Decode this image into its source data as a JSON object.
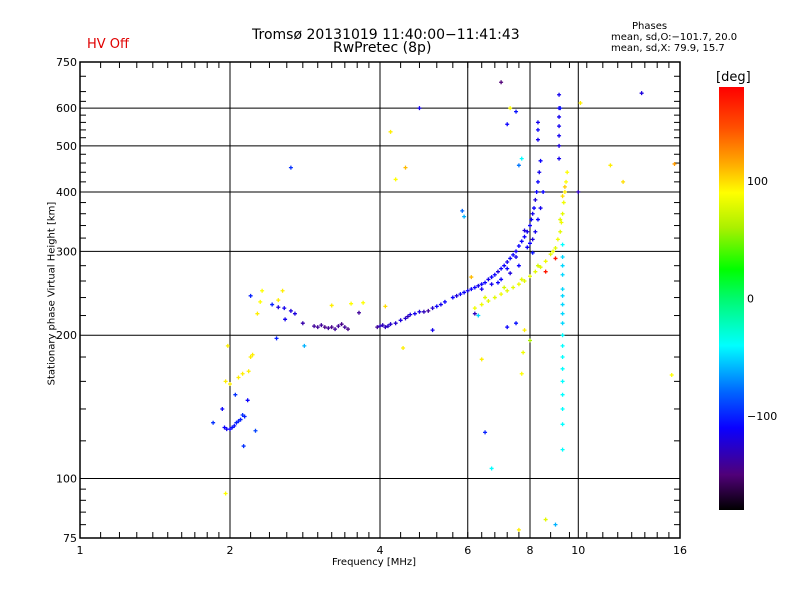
{
  "header": {
    "title_line1": "Tromsø 20131019 11:40:00−11:41:43",
    "title_line2": "RwPretec (8p)",
    "status": "HV Off",
    "phases_title": "Phases",
    "phases_o": "mean, sd,O:−101.7, 20.0",
    "phases_x": "mean, sd,X:  79.9, 15.7"
  },
  "colors": {
    "status": "#e00000",
    "grid": "#000000"
  },
  "chart_data": {
    "type": "scatter",
    "title": "Tromsø 20131019 11:40:00−11:41:43 RwPretec (8p)",
    "xlabel": "Frequency [MHz]",
    "ylabel": "Stationary phase Virtual Height [km]",
    "xscale": "log",
    "yscale": "log",
    "xlim": [
      1,
      16
    ],
    "ylim": [
      75,
      750
    ],
    "xticks": [
      1,
      2,
      4,
      6,
      8,
      10,
      16
    ],
    "xtick_labels": [
      "1",
      "2",
      "4",
      "6",
      "8",
      "10",
      "16"
    ],
    "yticks": [
      75,
      100,
      200,
      300,
      400,
      500,
      600,
      750
    ],
    "ytick_labels": [
      "75",
      "100",
      "200",
      "300",
      "400",
      "500",
      "600",
      "750"
    ],
    "grid": true,
    "colorbar": {
      "label": "[deg]",
      "range": [
        -180,
        180
      ],
      "ticks": [
        100,
        0,
        -100
      ],
      "tick_labels": [
        "100",
        "0",
        "−100"
      ],
      "colormap": "rainbow (black→purple→blue→cyan→green→yellow→orange→red)"
    },
    "columns": [
      "freq_MHz",
      "height_km",
      "phase_deg"
    ],
    "points": [
      [
        1.85,
        131,
        -95
      ],
      [
        1.93,
        140,
        -110
      ],
      [
        1.95,
        128,
        -110
      ],
      [
        1.97,
        127,
        -112
      ],
      [
        2.0,
        127,
        -110
      ],
      [
        2.02,
        128,
        -105
      ],
      [
        2.04,
        129,
        -105
      ],
      [
        2.06,
        131,
        -100
      ],
      [
        2.08,
        132,
        -100
      ],
      [
        2.1,
        133,
        -100
      ],
      [
        2.12,
        136,
        -95
      ],
      [
        2.14,
        135,
        -100
      ],
      [
        2.17,
        146,
        -110
      ],
      [
        2.05,
        150,
        -95
      ],
      [
        2.25,
        126,
        -90
      ],
      [
        2.13,
        117,
        -95
      ],
      [
        1.96,
        93,
        90
      ],
      [
        1.96,
        160,
        95
      ],
      [
        2.0,
        158,
        95
      ],
      [
        2.08,
        163,
        95
      ],
      [
        2.12,
        166,
        95
      ],
      [
        2.2,
        180,
        95
      ],
      [
        2.22,
        182,
        95
      ],
      [
        2.18,
        168,
        95
      ],
      [
        1.98,
        190,
        95
      ],
      [
        2.48,
        197,
        -100
      ],
      [
        2.5,
        229,
        -120
      ],
      [
        2.43,
        232,
        -100
      ],
      [
        2.2,
        242,
        -100
      ],
      [
        2.27,
        222,
        95
      ],
      [
        2.3,
        235,
        90
      ],
      [
        2.32,
        248,
        90
      ],
      [
        2.5,
        237,
        95
      ],
      [
        2.55,
        248,
        95
      ],
      [
        2.57,
        228,
        -115
      ],
      [
        2.65,
        225,
        -120
      ],
      [
        2.7,
        222,
        -120
      ],
      [
        2.58,
        216,
        -115
      ],
      [
        2.65,
        450,
        -95
      ],
      [
        2.82,
        190,
        -60
      ],
      [
        2.8,
        212,
        -135
      ],
      [
        2.95,
        209,
        -140
      ],
      [
        3.0,
        208,
        -140
      ],
      [
        3.05,
        210,
        -140
      ],
      [
        3.1,
        208,
        -145
      ],
      [
        3.15,
        207,
        -140
      ],
      [
        3.2,
        208,
        -145
      ],
      [
        3.25,
        206,
        -140
      ],
      [
        3.3,
        209,
        -140
      ],
      [
        3.35,
        211,
        -145
      ],
      [
        3.4,
        208,
        -140
      ],
      [
        3.45,
        206,
        -145
      ],
      [
        3.2,
        231,
        95
      ],
      [
        3.5,
        233,
        90
      ],
      [
        3.7,
        234,
        90
      ],
      [
        3.63,
        223,
        -140
      ],
      [
        3.95,
        208,
        -140
      ],
      [
        4.0,
        209,
        -130
      ],
      [
        4.05,
        210,
        -130
      ],
      [
        4.1,
        208,
        -130
      ],
      [
        4.15,
        209,
        -125
      ],
      [
        4.2,
        211,
        -125
      ],
      [
        4.3,
        212,
        -125
      ],
      [
        4.4,
        215,
        -120
      ],
      [
        4.5,
        217,
        -125
      ],
      [
        4.55,
        219,
        -130
      ],
      [
        4.6,
        221,
        -120
      ],
      [
        4.7,
        222,
        -115
      ],
      [
        4.8,
        224,
        -120
      ],
      [
        4.9,
        224,
        -130
      ],
      [
        5.0,
        225,
        -140
      ],
      [
        5.1,
        228,
        -125
      ],
      [
        5.2,
        230,
        -110
      ],
      [
        5.3,
        232,
        -115
      ],
      [
        5.4,
        235,
        -110
      ],
      [
        5.6,
        240,
        -110
      ],
      [
        5.7,
        242,
        -120
      ],
      [
        5.8,
        244,
        -110
      ],
      [
        5.9,
        246,
        -110
      ],
      [
        6.0,
        248,
        -115
      ],
      [
        6.1,
        250,
        -110
      ],
      [
        6.2,
        252,
        -110
      ],
      [
        6.3,
        254,
        -115
      ],
      [
        6.4,
        256,
        -110
      ],
      [
        6.5,
        258,
        -110
      ],
      [
        6.6,
        262,
        -115
      ],
      [
        6.7,
        265,
        -110
      ],
      [
        6.8,
        268,
        -110
      ],
      [
        6.9,
        272,
        -120
      ],
      [
        7.0,
        276,
        -110
      ],
      [
        7.1,
        280,
        -110
      ],
      [
        7.2,
        285,
        -115
      ],
      [
        7.3,
        290,
        -110
      ],
      [
        7.4,
        295,
        -110
      ],
      [
        7.5,
        300,
        -115
      ],
      [
        7.6,
        308,
        -110
      ],
      [
        7.7,
        315,
        -110
      ],
      [
        7.8,
        322,
        -110
      ],
      [
        7.9,
        330,
        -115
      ],
      [
        8.0,
        340,
        -110
      ],
      [
        8.05,
        350,
        -110
      ],
      [
        8.1,
        360,
        -115
      ],
      [
        8.15,
        370,
        -110
      ],
      [
        8.2,
        385,
        -120
      ],
      [
        8.25,
        400,
        -110
      ],
      [
        8.3,
        420,
        -110
      ],
      [
        8.35,
        440,
        -115
      ],
      [
        8.4,
        465,
        -110
      ],
      [
        8.0,
        312,
        -110
      ],
      [
        7.8,
        332,
        -120
      ],
      [
        8.1,
        298,
        -105
      ],
      [
        7.6,
        280,
        -110
      ],
      [
        7.3,
        270,
        -120
      ],
      [
        7.0,
        262,
        -110
      ],
      [
        6.7,
        256,
        -115
      ],
      [
        6.4,
        250,
        -115
      ],
      [
        6.9,
        258,
        -110
      ],
      [
        7.2,
        276,
        -110
      ],
      [
        7.5,
        292,
        -115
      ],
      [
        8.2,
        330,
        -115
      ],
      [
        8.3,
        350,
        -110
      ],
      [
        8.4,
        370,
        -115
      ],
      [
        8.5,
        400,
        -110
      ],
      [
        8.1,
        318,
        -120
      ],
      [
        7.9,
        306,
        -110
      ],
      [
        6.2,
        228,
        85
      ],
      [
        6.4,
        232,
        85
      ],
      [
        6.6,
        236,
        80
      ],
      [
        6.8,
        240,
        80
      ],
      [
        7.0,
        244,
        85
      ],
      [
        7.2,
        248,
        80
      ],
      [
        7.4,
        252,
        80
      ],
      [
        7.6,
        256,
        85
      ],
      [
        7.8,
        260,
        80
      ],
      [
        8.0,
        266,
        80
      ],
      [
        8.2,
        272,
        80
      ],
      [
        8.4,
        278,
        80
      ],
      [
        8.6,
        286,
        85
      ],
      [
        8.8,
        296,
        80
      ],
      [
        9.0,
        305,
        80
      ],
      [
        9.1,
        318,
        85
      ],
      [
        9.2,
        330,
        80
      ],
      [
        9.25,
        345,
        85
      ],
      [
        9.3,
        360,
        80
      ],
      [
        9.35,
        380,
        85
      ],
      [
        9.4,
        400,
        95
      ],
      [
        9.45,
        420,
        90
      ],
      [
        6.5,
        240,
        80
      ],
      [
        7.1,
        252,
        75
      ],
      [
        7.7,
        262,
        80
      ],
      [
        8.3,
        280,
        75
      ],
      [
        8.9,
        300,
        85
      ],
      [
        9.2,
        350,
        80
      ],
      [
        9.3,
        392,
        100
      ],
      [
        9.4,
        410,
        105
      ],
      [
        9.5,
        440,
        90
      ],
      [
        8.6,
        272,
        170
      ],
      [
        9.0,
        290,
        170
      ],
      [
        4.1,
        230,
        100
      ],
      [
        4.2,
        535,
        95
      ],
      [
        4.3,
        425,
        90
      ],
      [
        4.5,
        450,
        110
      ],
      [
        4.45,
        188,
        95
      ],
      [
        4.8,
        600,
        -115
      ],
      [
        5.1,
        205,
        -115
      ],
      [
        5.85,
        365,
        -80
      ],
      [
        5.9,
        355,
        -60
      ],
      [
        6.1,
        265,
        110
      ],
      [
        6.2,
        222,
        -130
      ],
      [
        6.4,
        178,
        95
      ],
      [
        6.5,
        125,
        -100
      ],
      [
        6.7,
        105,
        -40
      ],
      [
        6.3,
        220,
        -50
      ],
      [
        7.0,
        680,
        -150
      ],
      [
        7.2,
        555,
        -110
      ],
      [
        7.3,
        600,
        90
      ],
      [
        7.5,
        590,
        -105
      ],
      [
        7.7,
        470,
        -40
      ],
      [
        7.6,
        455,
        -75
      ],
      [
        7.8,
        205,
        95
      ],
      [
        8.0,
        195,
        60
      ],
      [
        7.6,
        78,
        95
      ],
      [
        7.7,
        166,
        90
      ],
      [
        7.75,
        184,
        85
      ],
      [
        7.2,
        208,
        -110
      ],
      [
        7.5,
        212,
        -105
      ],
      [
        8.3,
        560,
        -115
      ],
      [
        8.3,
        540,
        -110
      ],
      [
        8.3,
        515,
        -115
      ],
      [
        9.15,
        600,
        -115
      ],
      [
        9.15,
        575,
        -115
      ],
      [
        9.15,
        550,
        -115
      ],
      [
        9.15,
        525,
        -115
      ],
      [
        9.15,
        500,
        -120
      ],
      [
        9.15,
        470,
        -115
      ],
      [
        9.15,
        640,
        -115
      ],
      [
        9.2,
        600,
        -105
      ],
      [
        9.3,
        250,
        -50
      ],
      [
        9.3,
        242,
        -50
      ],
      [
        9.3,
        232,
        -50
      ],
      [
        9.3,
        222,
        -50
      ],
      [
        9.3,
        212,
        -50
      ],
      [
        9.3,
        200,
        -40
      ],
      [
        9.3,
        190,
        -40
      ],
      [
        9.3,
        180,
        -40
      ],
      [
        9.3,
        170,
        -40
      ],
      [
        9.3,
        160,
        -40
      ],
      [
        9.3,
        150,
        -40
      ],
      [
        9.3,
        140,
        -40
      ],
      [
        9.3,
        130,
        -40
      ],
      [
        9.3,
        115,
        -40
      ],
      [
        9.3,
        268,
        -50
      ],
      [
        9.3,
        280,
        -50
      ],
      [
        9.3,
        292,
        -50
      ],
      [
        9.3,
        310,
        -40
      ],
      [
        10.0,
        400,
        -130
      ],
      [
        10.1,
        615,
        95
      ],
      [
        11.6,
        455,
        95
      ],
      [
        12.3,
        420,
        100
      ],
      [
        13.4,
        645,
        -120
      ],
      [
        15.6,
        458,
        120
      ],
      [
        15.4,
        165,
        90
      ],
      [
        9.0,
        80,
        -60
      ],
      [
        8.6,
        82,
        80
      ]
    ]
  }
}
